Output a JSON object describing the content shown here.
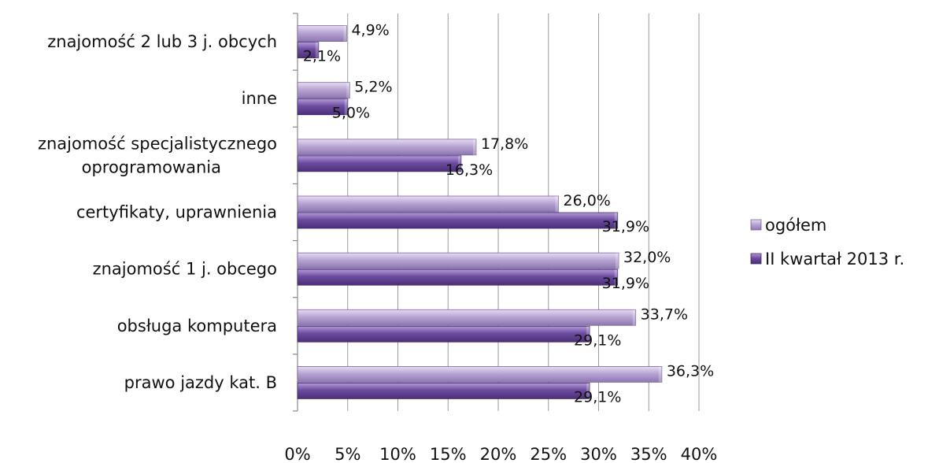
{
  "chart_data": {
    "type": "bar",
    "orientation": "horizontal",
    "categories": [
      "znajomość 2 lub 3 j. obcych",
      "inne",
      "znajomość specjalistycznego oprogramowania",
      "certyfikaty, uprawnienia",
      "znajomość 1 j. obcego",
      "obsługa komputera",
      "prawo jazdy kat. B"
    ],
    "category_lines": [
      [
        "znajomość 2 lub 3 j. obcych"
      ],
      [
        "inne"
      ],
      [
        "znajomość specjalistycznego",
        "oprogramowania"
      ],
      [
        "certyfikaty, uprawnienia"
      ],
      [
        "znajomość 1 j. obcego"
      ],
      [
        "obsługa komputera"
      ],
      [
        "prawo jazdy kat. B"
      ]
    ],
    "series": [
      {
        "name": "ogółem",
        "values": [
          4.9,
          5.2,
          17.8,
          26.0,
          32.0,
          33.7,
          36.3
        ],
        "labels": [
          "4,9%",
          "5,2%",
          "17,8%",
          "26,0%",
          "32,0%",
          "33,7%",
          "36,3%"
        ],
        "color": "#a994c6"
      },
      {
        "name": "II kwartał 2013 r.",
        "values": [
          2.1,
          5.0,
          16.3,
          31.9,
          31.9,
          29.1,
          29.1
        ],
        "labels": [
          "2,1%",
          "5,0%",
          "16,3%",
          "31,9%",
          "31,9%",
          "29,1%",
          "29,1%"
        ],
        "color": "#6a4a9a"
      }
    ],
    "xlim": [
      0,
      40
    ],
    "xticks": [
      0,
      5,
      10,
      15,
      20,
      25,
      30,
      35,
      40
    ],
    "xtick_labels": [
      "0%",
      "5%",
      "10%",
      "15%",
      "20%",
      "25%",
      "30%",
      "35%",
      "40%"
    ],
    "grid": true,
    "legend_position": "right"
  }
}
